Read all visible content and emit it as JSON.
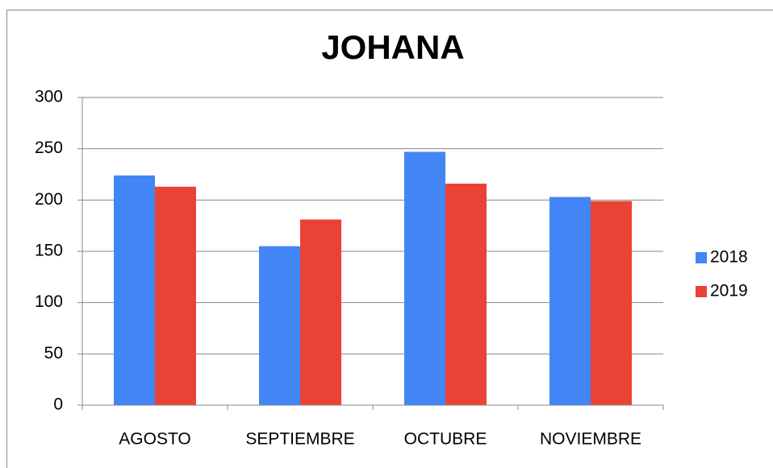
{
  "chart_data": {
    "type": "bar",
    "title": "JOHANA",
    "categories": [
      "AGOSTO",
      "SEPTIEMBRE",
      "OCTUBRE",
      "NOVIEMBRE"
    ],
    "series": [
      {
        "name": "2018",
        "color": "#4285f4",
        "values": [
          224,
          155,
          247,
          203
        ]
      },
      {
        "name": "2019",
        "color": "#ea4335",
        "values": [
          213,
          181,
          216,
          199
        ]
      }
    ],
    "ylim": [
      0,
      300
    ],
    "yticks": [
      0,
      50,
      100,
      150,
      200,
      250,
      300
    ],
    "grid": true,
    "legend": "right"
  }
}
